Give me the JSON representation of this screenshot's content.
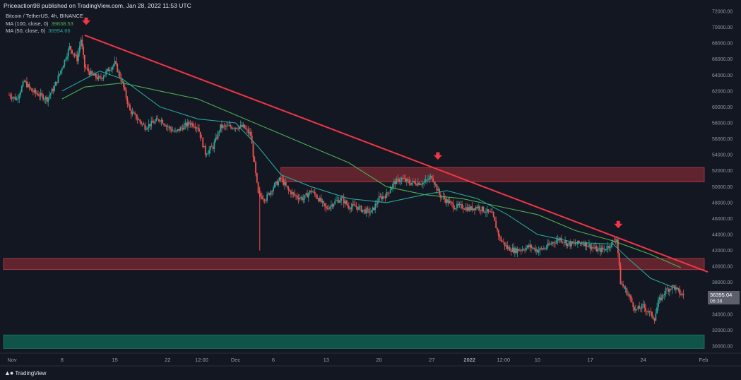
{
  "header": {
    "publisher": "Priceaction98 published on TradingView.com, Jan 28, 2022 11:53 UTC"
  },
  "legend": {
    "symbol": "Bitcoin / TetherUS, 4h, BINANCE",
    "ma100": {
      "label": "MA (100, close, 0)",
      "value": "39838.53",
      "color": "#4caf50"
    },
    "ma50": {
      "label": "MA (50, close, 0)",
      "value": "36994.66",
      "color": "#26a69a"
    }
  },
  "footer": {
    "brand": "TradingView",
    "logo_icon": "tradingview-logo-icon"
  },
  "colors": {
    "background": "#131722",
    "up": "#26a69a",
    "down": "#ef5350",
    "trendline": "#f23645",
    "zone_red": "#7a2a33",
    "zone_green": "#0f5a4e",
    "arrow": "#f23645"
  },
  "chart_data": {
    "type": "candlestick",
    "interval": "4h",
    "ylim": [
      30000,
      72000
    ],
    "y_ticks": [
      "72000.00",
      "70000.00",
      "68000.00",
      "66000.00",
      "64000.00",
      "62000.00",
      "60000.00",
      "58000.00",
      "56000.00",
      "54000.00",
      "52000.00",
      "50000.00",
      "48000.00",
      "46000.00",
      "44000.00",
      "42000.00",
      "40000.00",
      "38000.00",
      "36000.00",
      "34000.00",
      "32000.00",
      "30000.00"
    ],
    "x_ticks": [
      {
        "label": "Nov",
        "day": 0
      },
      {
        "label": "8",
        "day": 7
      },
      {
        "label": "15",
        "day": 14
      },
      {
        "label": "22",
        "day": 21
      },
      {
        "label": "12:00",
        "day": 25.5
      },
      {
        "label": "Dec",
        "day": 30
      },
      {
        "label": "6",
        "day": 35
      },
      {
        "label": "13",
        "day": 42
      },
      {
        "label": "20",
        "day": 49
      },
      {
        "label": "27",
        "day": 56
      },
      {
        "label": "2022",
        "day": 61
      },
      {
        "label": "12:00",
        "day": 65.5
      },
      {
        "label": "10",
        "day": 70
      },
      {
        "label": "17",
        "day": 77
      },
      {
        "label": "24",
        "day": 84
      },
      {
        "label": "Feb",
        "day": 92
      }
    ],
    "day_range": [
      0,
      92
    ],
    "last_price": {
      "value": "36395.04",
      "countdown": "06:38"
    },
    "price_path": [
      [
        0,
        61500
      ],
      [
        1,
        61000
      ],
      [
        2,
        63200
      ],
      [
        3,
        62000
      ],
      [
        4,
        61500
      ],
      [
        5,
        61000
      ],
      [
        6,
        62500
      ],
      [
        7,
        65000
      ],
      [
        8,
        67500
      ],
      [
        9,
        66000
      ],
      [
        9.5,
        68500
      ],
      [
        10,
        65000
      ],
      [
        11,
        64000
      ],
      [
        12,
        63500
      ],
      [
        13,
        64500
      ],
      [
        14,
        65500
      ],
      [
        15,
        63000
      ],
      [
        16,
        59500
      ],
      [
        17,
        58500
      ],
      [
        18,
        57500
      ],
      [
        19,
        58000
      ],
      [
        20,
        58500
      ],
      [
        21,
        57500
      ],
      [
        22,
        56800
      ],
      [
        23,
        57500
      ],
      [
        24,
        58000
      ],
      [
        25,
        57500
      ],
      [
        26,
        54200
      ],
      [
        27,
        55000
      ],
      [
        28,
        57500
      ],
      [
        29,
        57500
      ],
      [
        30,
        57500
      ],
      [
        31,
        57500
      ],
      [
        32,
        56500
      ],
      [
        33,
        49000
      ],
      [
        34,
        48500
      ],
      [
        35,
        50000
      ],
      [
        36,
        51000
      ],
      [
        37,
        49500
      ],
      [
        38,
        48800
      ],
      [
        39,
        48500
      ],
      [
        40,
        49500
      ],
      [
        41,
        48500
      ],
      [
        42,
        47200
      ],
      [
        43,
        48000
      ],
      [
        44,
        48500
      ],
      [
        45,
        47500
      ],
      [
        46,
        47500
      ],
      [
        47,
        47000
      ],
      [
        48,
        46800
      ],
      [
        49,
        48500
      ],
      [
        50,
        49000
      ],
      [
        51,
        50500
      ],
      [
        52,
        51000
      ],
      [
        53,
        50500
      ],
      [
        54,
        50500
      ],
      [
        55,
        50500
      ],
      [
        56,
        51300
      ],
      [
        57,
        49000
      ],
      [
        58,
        48200
      ],
      [
        59,
        47500
      ],
      [
        60,
        47500
      ],
      [
        61,
        47200
      ],
      [
        62,
        47500
      ],
      [
        63,
        47000
      ],
      [
        64,
        46500
      ],
      [
        65,
        43500
      ],
      [
        66,
        42300
      ],
      [
        67,
        42000
      ],
      [
        68,
        42200
      ],
      [
        69,
        42500
      ],
      [
        70,
        42000
      ],
      [
        71,
        42300
      ],
      [
        72,
        43000
      ],
      [
        73,
        43500
      ],
      [
        74,
        42800
      ],
      [
        75,
        42800
      ],
      [
        76,
        43000
      ],
      [
        77,
        42500
      ],
      [
        78,
        42000
      ],
      [
        79,
        42200
      ],
      [
        80,
        43000
      ],
      [
        80.5,
        43500
      ],
      [
        81,
        38000
      ],
      [
        82,
        36500
      ],
      [
        83,
        34500
      ],
      [
        84,
        35000
      ],
      [
        85,
        34000
      ],
      [
        85.5,
        33500
      ],
      [
        86,
        35500
      ],
      [
        87,
        37000
      ],
      [
        88,
        37500
      ],
      [
        89,
        36500
      ],
      [
        89.5,
        36395
      ]
    ],
    "ma100": [
      [
        7,
        61000
      ],
      [
        10,
        62500
      ],
      [
        15,
        63000
      ],
      [
        20,
        62000
      ],
      [
        25,
        61000
      ],
      [
        30,
        59000
      ],
      [
        35,
        57000
      ],
      [
        40,
        55000
      ],
      [
        45,
        53000
      ],
      [
        50,
        50000
      ],
      [
        55,
        49000
      ],
      [
        60,
        48500
      ],
      [
        65,
        47500
      ],
      [
        70,
        46500
      ],
      [
        75,
        44500
      ],
      [
        80,
        43200
      ],
      [
        85,
        41500
      ],
      [
        89,
        39838
      ]
    ],
    "ma50": [
      [
        7,
        62000
      ],
      [
        12,
        64500
      ],
      [
        15,
        63500
      ],
      [
        20,
        60000
      ],
      [
        25,
        58500
      ],
      [
        30,
        58000
      ],
      [
        33,
        55000
      ],
      [
        36,
        51500
      ],
      [
        40,
        50000
      ],
      [
        45,
        48500
      ],
      [
        50,
        48000
      ],
      [
        55,
        49000
      ],
      [
        58,
        49500
      ],
      [
        62,
        48500
      ],
      [
        66,
        46500
      ],
      [
        70,
        44000
      ],
      [
        75,
        43000
      ],
      [
        80,
        42800
      ],
      [
        82,
        41000
      ],
      [
        85,
        38500
      ],
      [
        89,
        36994
      ]
    ],
    "trendline": {
      "from": [
        10,
        69000
      ],
      "to": [
        92,
        39300
      ]
    },
    "zones": [
      {
        "kind": "resistance",
        "from_day": 36,
        "to_day": 92,
        "y_low": 50600,
        "y_high": 52400
      },
      {
        "kind": "support",
        "from_day": 0,
        "to_day": 92,
        "y_low": 39600,
        "y_high": 41000
      },
      {
        "kind": "demand",
        "from_day": 0,
        "to_day": 92,
        "y_low": 29700,
        "y_high": 31400
      }
    ],
    "markers": [
      {
        "icon": "down-arrow-icon",
        "day": 10.2,
        "y": 70500
      },
      {
        "icon": "down-arrow-icon",
        "day": 56.8,
        "y": 53600
      },
      {
        "icon": "down-arrow-icon",
        "day": 80.7,
        "y": 45000
      }
    ]
  }
}
